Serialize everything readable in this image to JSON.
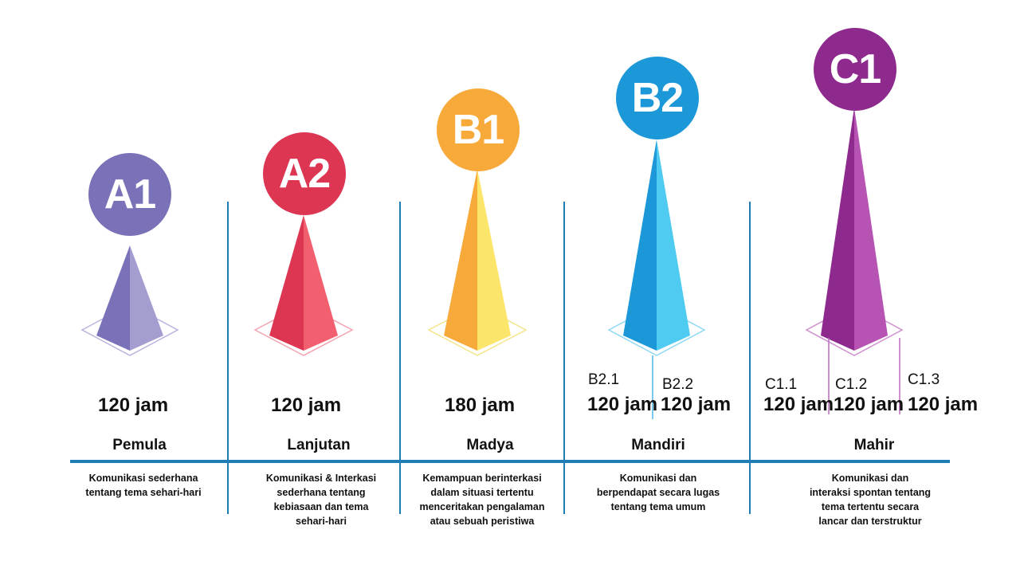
{
  "levels": [
    {
      "code": "A1",
      "color": "#7a72b8",
      "color_light": "#a49dd0",
      "name": "Pemula",
      "hours": "120 jam",
      "desc": [
        "Komunikasi sederhana",
        "tentang tema sehari-hari"
      ]
    },
    {
      "code": "A2",
      "color": "#dc3653",
      "color_light": "#f2606f",
      "name": "Lanjutan",
      "hours": "120 jam",
      "desc": [
        "Komunikasi & Interkasi",
        "sederhana tentang",
        "kebiasaan dan tema",
        "sehari-hari"
      ]
    },
    {
      "code": "B1",
      "color": "#f7a93a",
      "color_light": "#fbe56a",
      "name": "Madya",
      "hours": "180 jam",
      "desc": [
        "Kemampuan berinterkasi",
        "dalam situasi tertentu",
        "menceritakan pengalaman",
        "atau sebuah peristiwa"
      ]
    },
    {
      "code": "B2",
      "color": "#1c98d8",
      "color_light": "#4fcaf0",
      "name": "Mandiri",
      "sublevels": [
        {
          "label": "B2.1",
          "hours": "120 jam"
        },
        {
          "label": "B2.2",
          "hours": "120 jam"
        }
      ],
      "desc": [
        "Komunikasi dan",
        "berpendapat secara lugas",
        "tentang tema umum"
      ]
    },
    {
      "code": "C1",
      "color": "#8e2a8e",
      "color_light": "#b653b3",
      "name": "Mahir",
      "sublevels": [
        {
          "label": "C1.1",
          "hours": "120 jam"
        },
        {
          "label": "C1.2",
          "hours": "120 jam"
        },
        {
          "label": "C1.3",
          "hours": "120 jam"
        }
      ],
      "desc": [
        "Komunikasi dan",
        "interaksi spontan tentang",
        "tema tertentu secara",
        "lancar dan terstruktur"
      ]
    }
  ],
  "colors": {
    "axis": "#1f7db3"
  }
}
